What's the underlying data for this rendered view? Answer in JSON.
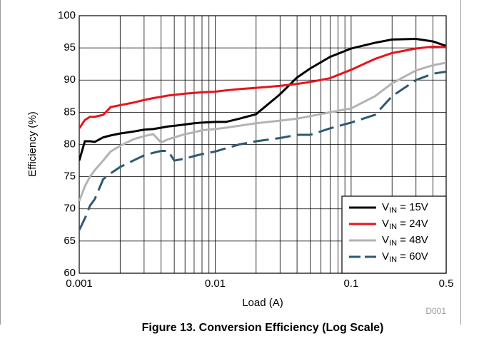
{
  "chart_data": {
    "type": "line",
    "caption": "Figure 13. Conversion Efficiency (Log Scale)",
    "code": "D001",
    "xlabel": "Load (A)",
    "ylabel": "Efficiency (%)",
    "xscale": "log",
    "grid": true,
    "minor_grid": true,
    "legend": "lower right",
    "xlim": [
      0.001,
      0.5
    ],
    "xticks": [
      0.001,
      0.01,
      0.1,
      0.5
    ],
    "ylim": [
      60,
      100
    ],
    "yticks": [
      60,
      65,
      70,
      75,
      80,
      85,
      90,
      95,
      100
    ],
    "x": [
      0.001,
      0.0011,
      0.0012,
      0.0013,
      0.0015,
      0.0017,
      0.002,
      0.0025,
      0.003,
      0.0035,
      0.004,
      0.0045,
      0.005,
      0.006,
      0.007,
      0.008,
      0.01,
      0.012,
      0.015,
      0.02,
      0.03,
      0.04,
      0.05,
      0.07,
      0.1,
      0.15,
      0.2,
      0.3,
      0.4,
      0.5
    ],
    "series": [
      {
        "name": "VIN = 15V",
        "color": "#000000",
        "dashed": false,
        "values": [
          77.5,
          80.5,
          80.5,
          80.4,
          81.1,
          81.4,
          81.7,
          82.0,
          82.3,
          82.4,
          82.6,
          82.8,
          82.9,
          83.1,
          83.3,
          83.4,
          83.5,
          83.5,
          84.0,
          84.7,
          87.8,
          90.4,
          91.8,
          93.6,
          94.9,
          95.8,
          96.3,
          96.4,
          96.0,
          95.3
        ]
      },
      {
        "name": "VIN = 24V",
        "color": "#e8141c",
        "dashed": false,
        "values": [
          82.5,
          83.8,
          84.3,
          84.3,
          84.6,
          85.8,
          86.1,
          86.5,
          86.9,
          87.2,
          87.4,
          87.6,
          87.7,
          87.9,
          88.0,
          88.1,
          88.2,
          88.4,
          88.6,
          88.8,
          89.1,
          89.4,
          89.7,
          90.3,
          91.6,
          93.3,
          94.2,
          94.9,
          95.2,
          95.1
        ]
      },
      {
        "name": "VIN = 48V",
        "color": "#b3b3b3",
        "dashed": false,
        "values": [
          71.2,
          73.5,
          75.0,
          76.0,
          77.5,
          78.9,
          79.8,
          80.8,
          81.3,
          81.6,
          80.3,
          80.8,
          81.1,
          81.6,
          81.9,
          82.2,
          82.4,
          82.6,
          82.9,
          83.3,
          83.7,
          84.0,
          84.4,
          85.0,
          85.6,
          87.5,
          89.5,
          91.5,
          92.3,
          92.7
        ]
      },
      {
        "name": "VIN = 60V",
        "color": "#2d5a72",
        "dashed": true,
        "values": [
          66.7,
          68.5,
          70.5,
          71.5,
          74.6,
          75.5,
          76.5,
          77.5,
          78.3,
          78.7,
          79.0,
          79.0,
          77.5,
          77.8,
          78.2,
          78.5,
          78.9,
          79.4,
          80.0,
          80.5,
          81.0,
          81.5,
          81.5,
          82.5,
          83.4,
          84.6,
          87.5,
          90.0,
          91.0,
          91.3
        ]
      }
    ]
  }
}
